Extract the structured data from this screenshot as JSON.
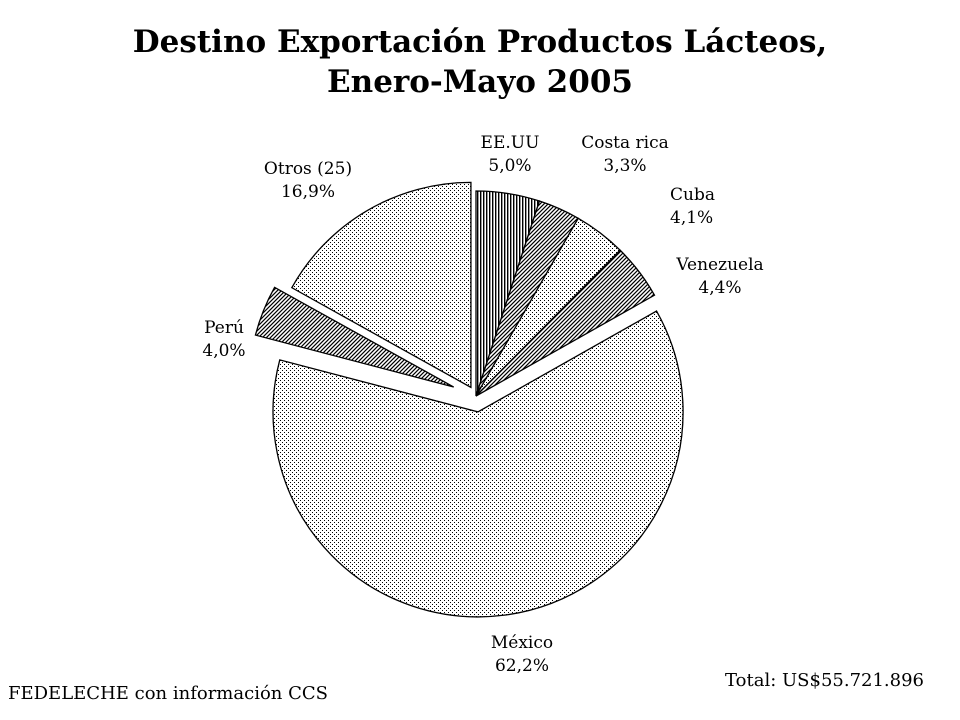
{
  "chart_data": {
    "type": "pie",
    "title": "Destino Exportación Productos Lácteos,",
    "subtitle": "Enero-Mayo 2005",
    "slices": [
      {
        "name": "EE.UU",
        "value_label": "5,0%",
        "value": 5.0,
        "pattern": "vertical-dense"
      },
      {
        "name": "Costa rica",
        "value_label": "3,3%",
        "value": 3.3,
        "pattern": "hatch-dense"
      },
      {
        "name": "Cuba",
        "value_label": "4,1%",
        "value": 4.1,
        "pattern": "dots"
      },
      {
        "name": "Venezuela",
        "value_label": "4,4%",
        "value": 4.4,
        "pattern": "hatch-dense"
      },
      {
        "name": "México",
        "value_label": "62,2%",
        "value": 62.2,
        "pattern": "dots"
      },
      {
        "name": "Perú",
        "value_label": "4,0%",
        "value": 4.0,
        "pattern": "hatch-dense"
      },
      {
        "name": "Otros (25)",
        "value_label": "16,9%",
        "value": 16.9,
        "pattern": "dots"
      }
    ]
  },
  "footer": {
    "source": "FEDELECHE con información CCS",
    "total": "Total: US$55.721.896"
  }
}
